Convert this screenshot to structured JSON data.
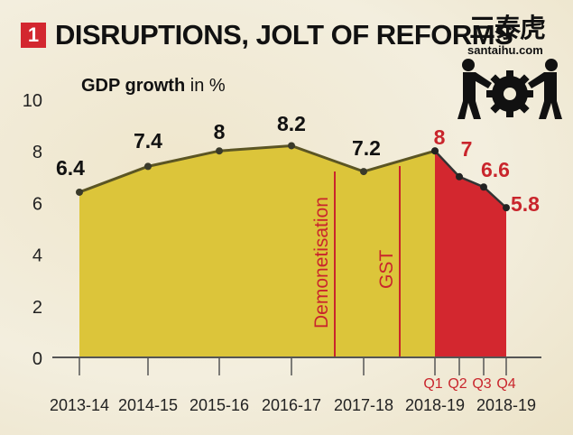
{
  "header": {
    "number": "1",
    "title": "DISRUPTIONS, JOLT OF REFORMS"
  },
  "watermark": {
    "text": "三泰虎",
    "url": "santaihu.com",
    "icon": "people-pushing-gear-icon"
  },
  "chart_data": {
    "type": "area",
    "title": "DISRUPTIONS, JOLT OF REFORMS",
    "ylabel_bold": "GDP growth",
    "ylabel_rest": " in %",
    "ylim": [
      0,
      10
    ],
    "yticks": [
      0,
      2,
      4,
      6,
      8,
      10
    ],
    "annual": {
      "categories": [
        "2013-14",
        "2014-15",
        "2015-16",
        "2016-17",
        "2017-18",
        "2018-19"
      ],
      "values": [
        6.4,
        7.4,
        8,
        8.2,
        7.2,
        8
      ],
      "labels": [
        "6.4",
        "7.4",
        "8",
        "8.2",
        "7.2",
        "8"
      ]
    },
    "quarterly": {
      "group_label": "2018-19",
      "categories": [
        "Q1",
        "Q2",
        "Q3",
        "Q4"
      ],
      "values": [
        8,
        7,
        6.6,
        5.8
      ],
      "labels": [
        "8",
        "7",
        "6.6",
        "5.8"
      ]
    },
    "annotations": [
      {
        "text": "Demonetisation",
        "between": [
          "2016-17",
          "2017-18"
        ]
      },
      {
        "text": "GST",
        "between": [
          "2017-18",
          "2018-19"
        ]
      }
    ],
    "colors": {
      "annual_fill": "#dcc53a",
      "annual_line": "#5b5524",
      "quarterly_fill": "#d3272f",
      "annotation": "#c9252c",
      "axis": "#555555"
    }
  }
}
